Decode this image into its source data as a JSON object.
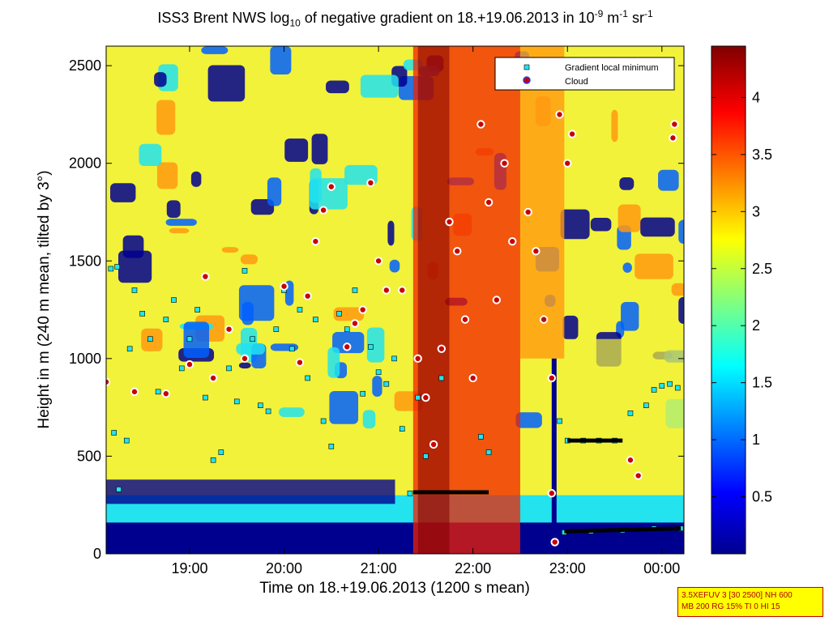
{
  "title": {
    "prefix": "ISS3 Brent NWS log",
    "sub": "10",
    "middle": " of negative gradient on 18.+19.06.2013 in 10",
    "exp1": "-9",
    "unit": " m",
    "exp2": "-1",
    "tail": " sr",
    "exp3": "-1"
  },
  "info_box": {
    "line1": "3.5XEFUV 3 [30 2500] NH 600",
    "line2": "MB 200 RG 15% TI 0 HI 15"
  },
  "colors": {
    "dark_blue": "#00008f",
    "blue": "#0060ff",
    "cyan": "#22e3ee",
    "yellow": "#f2f23a",
    "orange": "#ff9a10",
    "red": "#f02000",
    "dark_red": "#800000",
    "cloud_marker": "#c80000",
    "minimum_marker": "#22e3ee"
  },
  "chart_data": {
    "type": "heatmap",
    "title": "ISS3 Brent NWS log10 of negative gradient on 18.+19.06.2013 in 10^-9 m^-1 sr^-1",
    "xlabel": "Time on 18.+19.06.2013 (1200 s mean)",
    "ylabel": "Height in m (240 m mean, tilted by 3°)",
    "x_range": [
      "18:07",
      "00:14"
    ],
    "x_ticks": [
      "19:00",
      "20:00",
      "21:00",
      "22:00",
      "23:00",
      "00:00"
    ],
    "ylim": [
      0,
      2600
    ],
    "y_ticks": [
      0,
      500,
      1000,
      1500,
      2000,
      2500
    ],
    "colorbar": {
      "range": [
        0,
        4.45
      ],
      "ticks": [
        0.5,
        1,
        1.5,
        2,
        2.5,
        3,
        3.5,
        4
      ],
      "colormap": "jet"
    },
    "legend": {
      "position": "top-right",
      "entries": [
        "Gradient local minimum",
        "Cloud"
      ]
    },
    "series": [
      {
        "name": "Gradient local minimum",
        "marker": "square",
        "points": [
          [
            "18:10",
            1460
          ],
          [
            "18:14",
            1470
          ],
          [
            "18:12",
            620
          ],
          [
            "18:15",
            330
          ],
          [
            "18:20",
            580
          ],
          [
            "18:22",
            1050
          ],
          [
            "18:25",
            1350
          ],
          [
            "18:30",
            1230
          ],
          [
            "18:35",
            1100
          ],
          [
            "18:40",
            830
          ],
          [
            "18:45",
            1200
          ],
          [
            "18:50",
            1300
          ],
          [
            "18:55",
            950
          ],
          [
            "19:00",
            1100
          ],
          [
            "19:05",
            1250
          ],
          [
            "19:10",
            800
          ],
          [
            "19:15",
            480
          ],
          [
            "19:20",
            520
          ],
          [
            "19:25",
            950
          ],
          [
            "19:30",
            780
          ],
          [
            "19:35",
            1450
          ],
          [
            "19:40",
            1100
          ],
          [
            "19:45",
            760
          ],
          [
            "19:50",
            730
          ],
          [
            "19:55",
            1150
          ],
          [
            "20:00",
            1350
          ],
          [
            "20:05",
            1050
          ],
          [
            "20:10",
            1250
          ],
          [
            "20:15",
            900
          ],
          [
            "20:20",
            1200
          ],
          [
            "20:25",
            680
          ],
          [
            "20:30",
            550
          ],
          [
            "20:35",
            1230
          ],
          [
            "20:40",
            1150
          ],
          [
            "20:45",
            1350
          ],
          [
            "20:50",
            820
          ],
          [
            "20:55",
            1060
          ],
          [
            "21:00",
            930
          ],
          [
            "21:05",
            870
          ],
          [
            "21:10",
            1000
          ],
          [
            "21:15",
            640
          ],
          [
            "21:20",
            310
          ],
          [
            "21:25",
            800
          ],
          [
            "21:30",
            500
          ],
          [
            "21:40",
            900
          ],
          [
            "22:05",
            600
          ],
          [
            "22:10",
            520
          ],
          [
            "22:55",
            680
          ],
          [
            "23:00",
            580
          ],
          [
            "23:10",
            580
          ],
          [
            "23:20",
            580
          ],
          [
            "23:30",
            580
          ],
          [
            "23:40",
            720
          ],
          [
            "23:45",
            400
          ],
          [
            "23:50",
            760
          ],
          [
            "23:55",
            840
          ],
          [
            "00:00",
            860
          ],
          [
            "00:05",
            870
          ],
          [
            "00:10",
            850
          ],
          [
            "00:12",
            130
          ],
          [
            "23:55",
            130
          ],
          [
            "23:35",
            120
          ],
          [
            "23:15",
            115
          ],
          [
            "22:58",
            110
          ]
        ]
      },
      {
        "name": "Cloud",
        "marker": "circle",
        "points": [
          [
            "18:07",
            880
          ],
          [
            "18:25",
            830
          ],
          [
            "18:45",
            820
          ],
          [
            "19:00",
            970
          ],
          [
            "19:10",
            1420
          ],
          [
            "19:15",
            900
          ],
          [
            "19:25",
            1150
          ],
          [
            "19:35",
            1000
          ],
          [
            "20:00",
            1370
          ],
          [
            "20:10",
            980
          ],
          [
            "20:15",
            1320
          ],
          [
            "20:20",
            1600
          ],
          [
            "20:25",
            1760
          ],
          [
            "20:30",
            1880
          ],
          [
            "20:40",
            1060
          ],
          [
            "20:45",
            1180
          ],
          [
            "20:50",
            1250
          ],
          [
            "20:55",
            1900
          ],
          [
            "21:00",
            1500
          ],
          [
            "21:05",
            1350
          ],
          [
            "21:15",
            1350
          ],
          [
            "21:25",
            1000
          ],
          [
            "21:30",
            800
          ],
          [
            "21:35",
            560
          ],
          [
            "21:40",
            1050
          ],
          [
            "21:45",
            1700
          ],
          [
            "21:50",
            1550
          ],
          [
            "21:55",
            1200
          ],
          [
            "22:00",
            900
          ],
          [
            "22:05",
            2200
          ],
          [
            "22:10",
            1800
          ],
          [
            "22:15",
            1300
          ],
          [
            "22:20",
            2000
          ],
          [
            "22:25",
            1600
          ],
          [
            "22:35",
            1750
          ],
          [
            "22:40",
            1550
          ],
          [
            "22:45",
            1200
          ],
          [
            "22:50",
            900
          ],
          [
            "22:55",
            2250
          ],
          [
            "23:00",
            2000
          ],
          [
            "23:03",
            2150
          ],
          [
            "22:50",
            310
          ],
          [
            "23:40",
            480
          ],
          [
            "23:45",
            400
          ],
          [
            "00:07",
            2130
          ],
          [
            "00:08",
            2200
          ],
          [
            "22:52",
            60
          ]
        ]
      }
    ]
  }
}
